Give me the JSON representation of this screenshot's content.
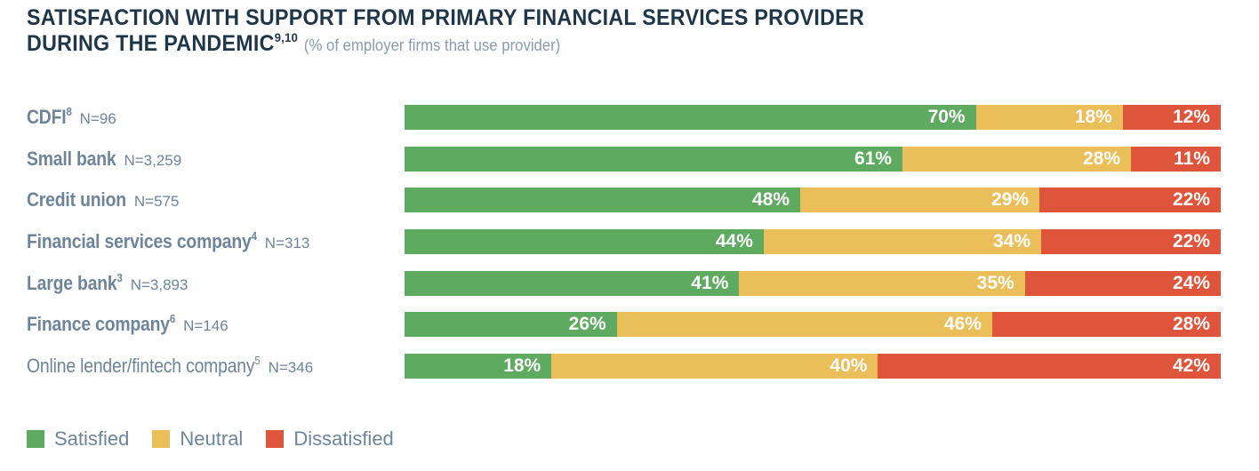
{
  "chart_data": {
    "type": "bar",
    "orientation": "horizontal",
    "stacked": true,
    "title": "SATISFACTION WITH SUPPORT FROM PRIMARY FINANCIAL SERVICES PROVIDER DURING THE PANDEMIC",
    "title_line1": "SATISFACTION WITH SUPPORT FROM PRIMARY FINANCIAL SERVICES PROVIDER",
    "title_line2": "DURING THE PANDEMIC",
    "title_footnote": "9,10",
    "subtitle": "(% of employer firms that use provider)",
    "xlabel": "",
    "ylabel": "",
    "xlim": [
      0,
      100
    ],
    "grid": false,
    "legend_position": "bottom-left",
    "categories": [
      {
        "name": "CDFI",
        "footnote": "8",
        "n": "N=96"
      },
      {
        "name": "Small bank",
        "footnote": "",
        "n": "N=3,259"
      },
      {
        "name": "Credit union",
        "footnote": "",
        "n": "N=575"
      },
      {
        "name": "Financial services company",
        "footnote": "4",
        "n": "N=313"
      },
      {
        "name": "Large bank",
        "footnote": "3",
        "n": "N=3,893"
      },
      {
        "name": "Finance company",
        "footnote": "6",
        "n": "N=146"
      },
      {
        "name": "Online lender/fintech company",
        "footnote": "5",
        "n": "N=346"
      }
    ],
    "series": [
      {
        "name": "Satisfied",
        "color": "#5daa60",
        "values": [
          70,
          61,
          48,
          44,
          41,
          26,
          18
        ]
      },
      {
        "name": "Neutral",
        "color": "#eabf5a",
        "values": [
          18,
          28,
          29,
          34,
          35,
          46,
          40
        ]
      },
      {
        "name": "Dissatisfied",
        "color": "#df553b",
        "values": [
          12,
          11,
          22,
          22,
          24,
          28,
          42
        ]
      }
    ]
  }
}
